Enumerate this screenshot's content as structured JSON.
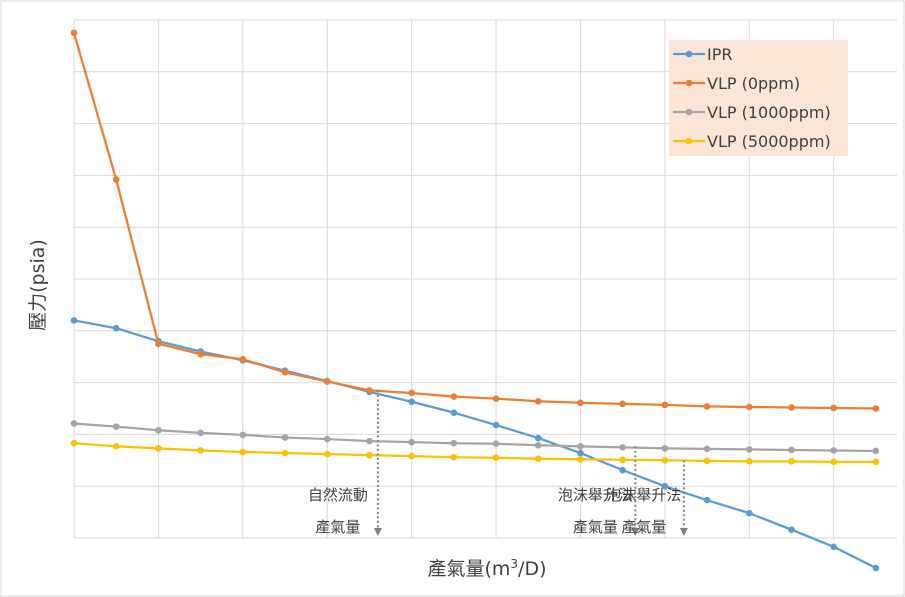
{
  "chart_data": {
    "type": "line",
    "title": "",
    "xlabel_main": "產氣量(m",
    "xlabel_sup": "3",
    "xlabel_tail": "/D)",
    "ylabel": "壓力(psia)",
    "x": [
      0,
      1,
      2,
      3,
      4,
      5,
      6,
      7,
      8,
      9,
      10,
      11,
      12,
      13,
      14,
      15,
      16,
      17,
      18,
      19
    ],
    "xlim": [
      0,
      19.5
    ],
    "ylim": [
      0,
      10
    ],
    "grid": true,
    "legend_position": "top-right",
    "series": [
      {
        "name": "IPR",
        "color": "#5b9bd5",
        "values": [
          4.2,
          4.05,
          3.8,
          3.6,
          3.43,
          3.23,
          3.03,
          2.82,
          2.63,
          2.42,
          2.18,
          1.93,
          1.64,
          1.31,
          1.0,
          0.73,
          0.48,
          0.16,
          -0.17,
          -0.58
        ]
      },
      {
        "name": "VLP (0ppm)",
        "color": "#ed7d31",
        "values": [
          9.75,
          6.92,
          3.75,
          3.55,
          3.45,
          3.2,
          3.02,
          2.85,
          2.8,
          2.73,
          2.69,
          2.64,
          2.61,
          2.59,
          2.57,
          2.54,
          2.53,
          2.52,
          2.51,
          2.5
        ]
      },
      {
        "name": "VLP (1000ppm)",
        "color": "#a5a5a5",
        "values": [
          2.21,
          2.15,
          2.08,
          2.03,
          1.99,
          1.94,
          1.91,
          1.87,
          1.85,
          1.83,
          1.82,
          1.79,
          1.77,
          1.75,
          1.73,
          1.72,
          1.71,
          1.7,
          1.69,
          1.68
        ]
      },
      {
        "name": "VLP (5000ppm)",
        "color": "#ffc000",
        "values": [
          1.83,
          1.77,
          1.73,
          1.69,
          1.66,
          1.64,
          1.62,
          1.6,
          1.58,
          1.56,
          1.55,
          1.53,
          1.52,
          1.51,
          1.5,
          1.49,
          1.48,
          1.48,
          1.47,
          1.47
        ]
      }
    ],
    "annotations": [
      {
        "line1": "自然流動",
        "line2": "產氣量",
        "x": 7.2,
        "y_top": 2.85
      },
      {
        "line1": "泡沫舉升法",
        "line2": "產氣量",
        "x": 13.3,
        "y_top": 1.77
      },
      {
        "line1": "泡沫舉升法",
        "line2": "產氣量",
        "x": 14.45,
        "y_top": 1.5
      }
    ]
  }
}
